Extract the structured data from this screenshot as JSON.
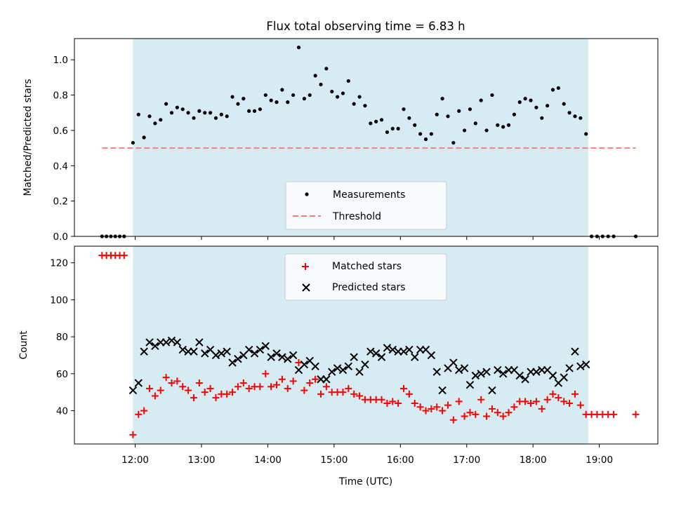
{
  "chart_data": [
    {
      "type": "scatter",
      "title": "Flux total observing time = 6.83 h",
      "ylabel": "Matched/Predicted stars",
      "xlabel": "",
      "xlim": [
        "11:05",
        "19:53"
      ],
      "ylim": [
        0,
        1.12
      ],
      "yticks": [
        0.0,
        0.2,
        0.4,
        0.6,
        0.8,
        1.0
      ],
      "ytick_labels": [
        "0.0",
        "0.2",
        "0.4",
        "0.6",
        "0.8",
        "1.0"
      ],
      "xticks": [
        "12:00",
        "13:00",
        "14:00",
        "15:00",
        "16:00",
        "17:00",
        "18:00",
        "19:00"
      ],
      "shaded_span": [
        "11:58",
        "18:50"
      ],
      "shaded_color": "#add8e6",
      "legend_position": "lower-center",
      "series": [
        {
          "name": "Measurements",
          "marker": "dot",
          "color": "#000000",
          "x": [
            "11:30",
            "11:34",
            "11:38",
            "11:42",
            "11:46",
            "11:50",
            "11:58",
            "12:03",
            "12:08",
            "12:13",
            "12:18",
            "12:23",
            "12:28",
            "12:33",
            "12:38",
            "12:43",
            "12:48",
            "12:53",
            "12:58",
            "13:03",
            "13:08",
            "13:13",
            "13:18",
            "13:23",
            "13:28",
            "13:33",
            "13:38",
            "13:43",
            "13:48",
            "13:53",
            "13:58",
            "14:03",
            "14:08",
            "14:13",
            "14:18",
            "14:23",
            "14:28",
            "14:33",
            "14:38",
            "14:43",
            "14:48",
            "14:53",
            "14:58",
            "15:03",
            "15:08",
            "15:13",
            "15:18",
            "15:23",
            "15:28",
            "15:33",
            "15:38",
            "15:43",
            "15:48",
            "15:53",
            "15:58",
            "16:03",
            "16:08",
            "16:13",
            "16:18",
            "16:23",
            "16:28",
            "16:33",
            "16:38",
            "16:43",
            "16:48",
            "16:53",
            "16:58",
            "17:03",
            "17:08",
            "17:13",
            "17:18",
            "17:23",
            "17:28",
            "17:33",
            "17:38",
            "17:43",
            "17:48",
            "17:53",
            "17:58",
            "18:03",
            "18:08",
            "18:13",
            "18:18",
            "18:23",
            "18:28",
            "18:33",
            "18:38",
            "18:43",
            "18:48",
            "18:53",
            "18:58",
            "19:03",
            "19:08",
            "19:13",
            "19:33"
          ],
          "y": [
            0.0,
            0.0,
            0.0,
            0.0,
            0.0,
            0.0,
            0.53,
            0.69,
            0.56,
            0.68,
            0.64,
            0.66,
            0.75,
            0.7,
            0.73,
            0.72,
            0.7,
            0.67,
            0.71,
            0.7,
            0.7,
            0.67,
            0.69,
            0.68,
            0.79,
            0.75,
            0.78,
            0.71,
            0.71,
            0.72,
            0.8,
            0.77,
            0.76,
            0.83,
            0.76,
            0.8,
            1.07,
            0.78,
            0.8,
            0.91,
            0.86,
            0.95,
            0.82,
            0.79,
            0.81,
            0.88,
            0.75,
            0.79,
            0.74,
            0.64,
            0.65,
            0.66,
            0.59,
            0.61,
            0.61,
            0.72,
            0.67,
            0.63,
            0.58,
            0.55,
            0.58,
            0.69,
            0.78,
            0.68,
            0.53,
            0.71,
            0.6,
            0.72,
            0.64,
            0.77,
            0.6,
            0.8,
            0.63,
            0.62,
            0.63,
            0.69,
            0.76,
            0.78,
            0.77,
            0.73,
            0.67,
            0.74,
            0.83,
            0.84,
            0.75,
            0.7,
            0.68,
            0.67,
            0.58,
            0.0,
            0.0,
            0.0,
            0.0,
            0.0,
            0.0
          ]
        },
        {
          "name": "Threshold",
          "marker": "dashed-line",
          "color": "#f08080",
          "x": [
            "11:30",
            "19:33"
          ],
          "y": [
            0.5,
            0.5
          ]
        }
      ]
    },
    {
      "type": "scatter",
      "title": "",
      "ylabel": "Count",
      "xlabel": "Time (UTC)",
      "xlim": [
        "11:05",
        "19:53"
      ],
      "ylim": [
        22,
        129
      ],
      "yticks": [
        40,
        60,
        80,
        100,
        120
      ],
      "ytick_labels": [
        "40",
        "60",
        "80",
        "100",
        "120"
      ],
      "xticks": [
        "12:00",
        "13:00",
        "14:00",
        "15:00",
        "16:00",
        "17:00",
        "18:00",
        "19:00"
      ],
      "xtick_labels": [
        "12:00",
        "13:00",
        "14:00",
        "15:00",
        "16:00",
        "17:00",
        "18:00",
        "19:00"
      ],
      "shaded_span": [
        "11:58",
        "18:50"
      ],
      "shaded_color": "#add8e6",
      "legend_position": "upper-center",
      "series": [
        {
          "name": "Matched stars",
          "marker": "plus",
          "color": "#ff0000",
          "x": [
            "11:30",
            "11:34",
            "11:38",
            "11:42",
            "11:46",
            "11:50",
            "11:58",
            "12:03",
            "12:08",
            "12:13",
            "12:18",
            "12:23",
            "12:28",
            "12:33",
            "12:38",
            "12:43",
            "12:48",
            "12:53",
            "12:58",
            "13:03",
            "13:08",
            "13:13",
            "13:18",
            "13:23",
            "13:28",
            "13:33",
            "13:38",
            "13:43",
            "13:48",
            "13:53",
            "13:58",
            "14:03",
            "14:08",
            "14:13",
            "14:18",
            "14:23",
            "14:28",
            "14:33",
            "14:38",
            "14:43",
            "14:48",
            "14:53",
            "14:58",
            "15:03",
            "15:08",
            "15:13",
            "15:18",
            "15:23",
            "15:28",
            "15:33",
            "15:38",
            "15:43",
            "15:48",
            "15:53",
            "15:58",
            "16:03",
            "16:08",
            "16:13",
            "16:18",
            "16:23",
            "16:28",
            "16:33",
            "16:38",
            "16:43",
            "16:48",
            "16:53",
            "16:58",
            "17:03",
            "17:08",
            "17:13",
            "17:18",
            "17:23",
            "17:28",
            "17:33",
            "17:38",
            "17:43",
            "17:48",
            "17:53",
            "17:58",
            "18:03",
            "18:08",
            "18:13",
            "18:18",
            "18:23",
            "18:28",
            "18:33",
            "18:38",
            "18:43",
            "18:48",
            "18:53",
            "18:58",
            "19:03",
            "19:08",
            "19:13",
            "19:33"
          ],
          "y": [
            124,
            124,
            124,
            124,
            124,
            124,
            27,
            38,
            40,
            52,
            48,
            51,
            58,
            55,
            56,
            53,
            51,
            47,
            55,
            50,
            52,
            47,
            49,
            49,
            50,
            53,
            55,
            52,
            53,
            53,
            60,
            53,
            54,
            57,
            52,
            56,
            66,
            51,
            55,
            57,
            49,
            53,
            50,
            50,
            50,
            52,
            49,
            48,
            46,
            46,
            46,
            46,
            44,
            45,
            44,
            52,
            49,
            44,
            42,
            40,
            41,
            42,
            40,
            43,
            35,
            45,
            37,
            39,
            38,
            46,
            37,
            41,
            39,
            37,
            39,
            42,
            45,
            45,
            44,
            45,
            41,
            46,
            49,
            47,
            45,
            44,
            49,
            43,
            38,
            38,
            38,
            38,
            38,
            38,
            38
          ]
        },
        {
          "name": "Predicted stars",
          "marker": "x",
          "color": "#000000",
          "x": [
            "11:58",
            "12:03",
            "12:08",
            "12:13",
            "12:18",
            "12:23",
            "12:28",
            "12:33",
            "12:38",
            "12:43",
            "12:48",
            "12:53",
            "12:58",
            "13:03",
            "13:08",
            "13:13",
            "13:18",
            "13:23",
            "13:28",
            "13:33",
            "13:38",
            "13:43",
            "13:48",
            "13:53",
            "13:58",
            "14:03",
            "14:08",
            "14:13",
            "14:18",
            "14:23",
            "14:28",
            "14:33",
            "14:38",
            "14:43",
            "14:48",
            "14:53",
            "14:58",
            "15:03",
            "15:08",
            "15:13",
            "15:18",
            "15:23",
            "15:28",
            "15:33",
            "15:38",
            "15:43",
            "15:48",
            "15:53",
            "15:58",
            "16:03",
            "16:08",
            "16:13",
            "16:18",
            "16:23",
            "16:28",
            "16:33",
            "16:38",
            "16:43",
            "16:48",
            "16:53",
            "16:58",
            "17:03",
            "17:08",
            "17:13",
            "17:18",
            "17:23",
            "17:28",
            "17:33",
            "17:38",
            "17:43",
            "17:48",
            "17:53",
            "17:58",
            "18:03",
            "18:08",
            "18:13",
            "18:18",
            "18:23",
            "18:28",
            "18:33",
            "18:38",
            "18:43",
            "18:48"
          ],
          "y": [
            51,
            55,
            72,
            77,
            75,
            77,
            77,
            78,
            77,
            73,
            72,
            72,
            77,
            71,
            73,
            70,
            71,
            72,
            66,
            68,
            70,
            73,
            71,
            73,
            75,
            69,
            71,
            69,
            68,
            70,
            62,
            65,
            67,
            64,
            57,
            57,
            61,
            63,
            62,
            64,
            69,
            61,
            65,
            72,
            71,
            69,
            74,
            73,
            72,
            72,
            73,
            69,
            73,
            73,
            70,
            61,
            51,
            63,
            66,
            62,
            63,
            54,
            59,
            60,
            61,
            51,
            62,
            60,
            62,
            62,
            59,
            57,
            61,
            61,
            62,
            62,
            59,
            55,
            58,
            63,
            72,
            64,
            65
          ]
        }
      ]
    }
  ]
}
